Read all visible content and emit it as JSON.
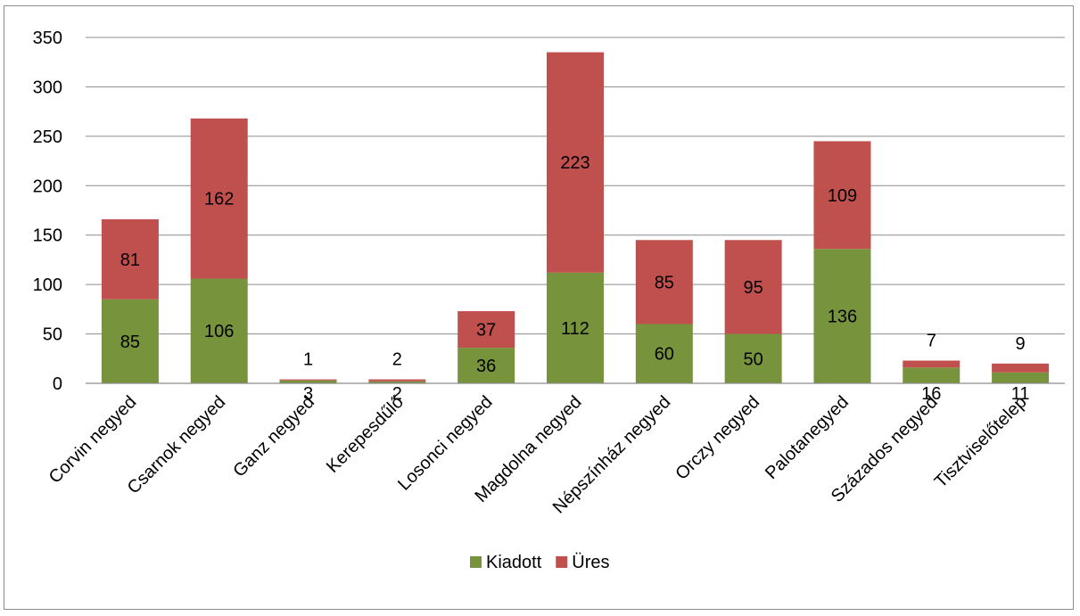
{
  "chart_data": {
    "type": "bar",
    "stacked": true,
    "categories": [
      "Corvin negyed",
      "Csarnok negyed",
      "Ganz negyed",
      "Kerepesdűlő",
      "Losonci negyed",
      "Magdolna negyed",
      "Népszínház negyed",
      "Orczy negyed",
      "Palotanegyed",
      "Százados negyed",
      "Tisztviselőtelep"
    ],
    "series": [
      {
        "name": "Kiadott",
        "color": "#77933c",
        "values": [
          85,
          106,
          3,
          2,
          36,
          112,
          60,
          50,
          136,
          16,
          11
        ]
      },
      {
        "name": "Üres",
        "color": "#c0504d",
        "values": [
          81,
          162,
          1,
          2,
          37,
          223,
          85,
          95,
          109,
          7,
          9
        ]
      }
    ],
    "ylim": [
      0,
      350
    ],
    "yticks": [
      0,
      50,
      100,
      150,
      200,
      250,
      300,
      350
    ],
    "grid": true,
    "legend_position": "bottom",
    "title": "",
    "xlabel": "",
    "ylabel": ""
  }
}
